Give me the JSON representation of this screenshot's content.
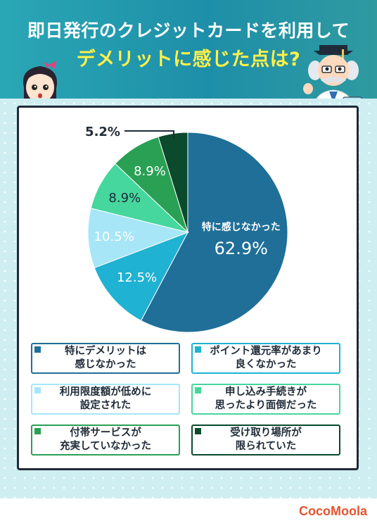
{
  "header": {
    "title_line1": "即日発行のクレジットカードを利用して",
    "title_line2": "デメリットに感じた点は?"
  },
  "chart_data": {
    "type": "pie",
    "categories": [
      "特にデメリットは感じなかった",
      "ポイント還元率があまり良くなかった",
      "利用限度額が低めに設定された",
      "申し込み手続きが思ったより面倒だった",
      "付帯サービスが充実していなかった",
      "受け取り場所が限られていた"
    ],
    "values": [
      62.9,
      12.5,
      10.5,
      8.9,
      8.9,
      5.2
    ],
    "data_labels": [
      "62.9%",
      "12.5%",
      "10.5%",
      "8.9%",
      "8.9%",
      "5.2%"
    ],
    "inner_caption": "特に感じなかった",
    "colors": [
      "#1f6f98",
      "#1fb2d2",
      "#a6e6f7",
      "#45d79d",
      "#2aa054",
      "#0b4a2c"
    ],
    "legend_placement": "bottom"
  },
  "legend": [
    {
      "line1": "特にデメリットは",
      "line2": "感じなかった",
      "color": "#1f6f98"
    },
    {
      "line1": "ポイント還元率があまり",
      "line2": "良くなかった",
      "color": "#1fb2d2"
    },
    {
      "line1": "利用限度額が低めに",
      "line2": "設定された",
      "color": "#a6e6f7"
    },
    {
      "line1": "申し込み手続きが",
      "line2": "思ったより面倒だった",
      "color": "#45d79d"
    },
    {
      "line1": "付帯サービスが",
      "line2": "充実していなかった",
      "color": "#2aa054"
    },
    {
      "line1": "受け取り場所が",
      "line2": "限られていた",
      "color": "#0b4a2c"
    }
  ],
  "footer": {
    "logo": "CocoMoola"
  }
}
